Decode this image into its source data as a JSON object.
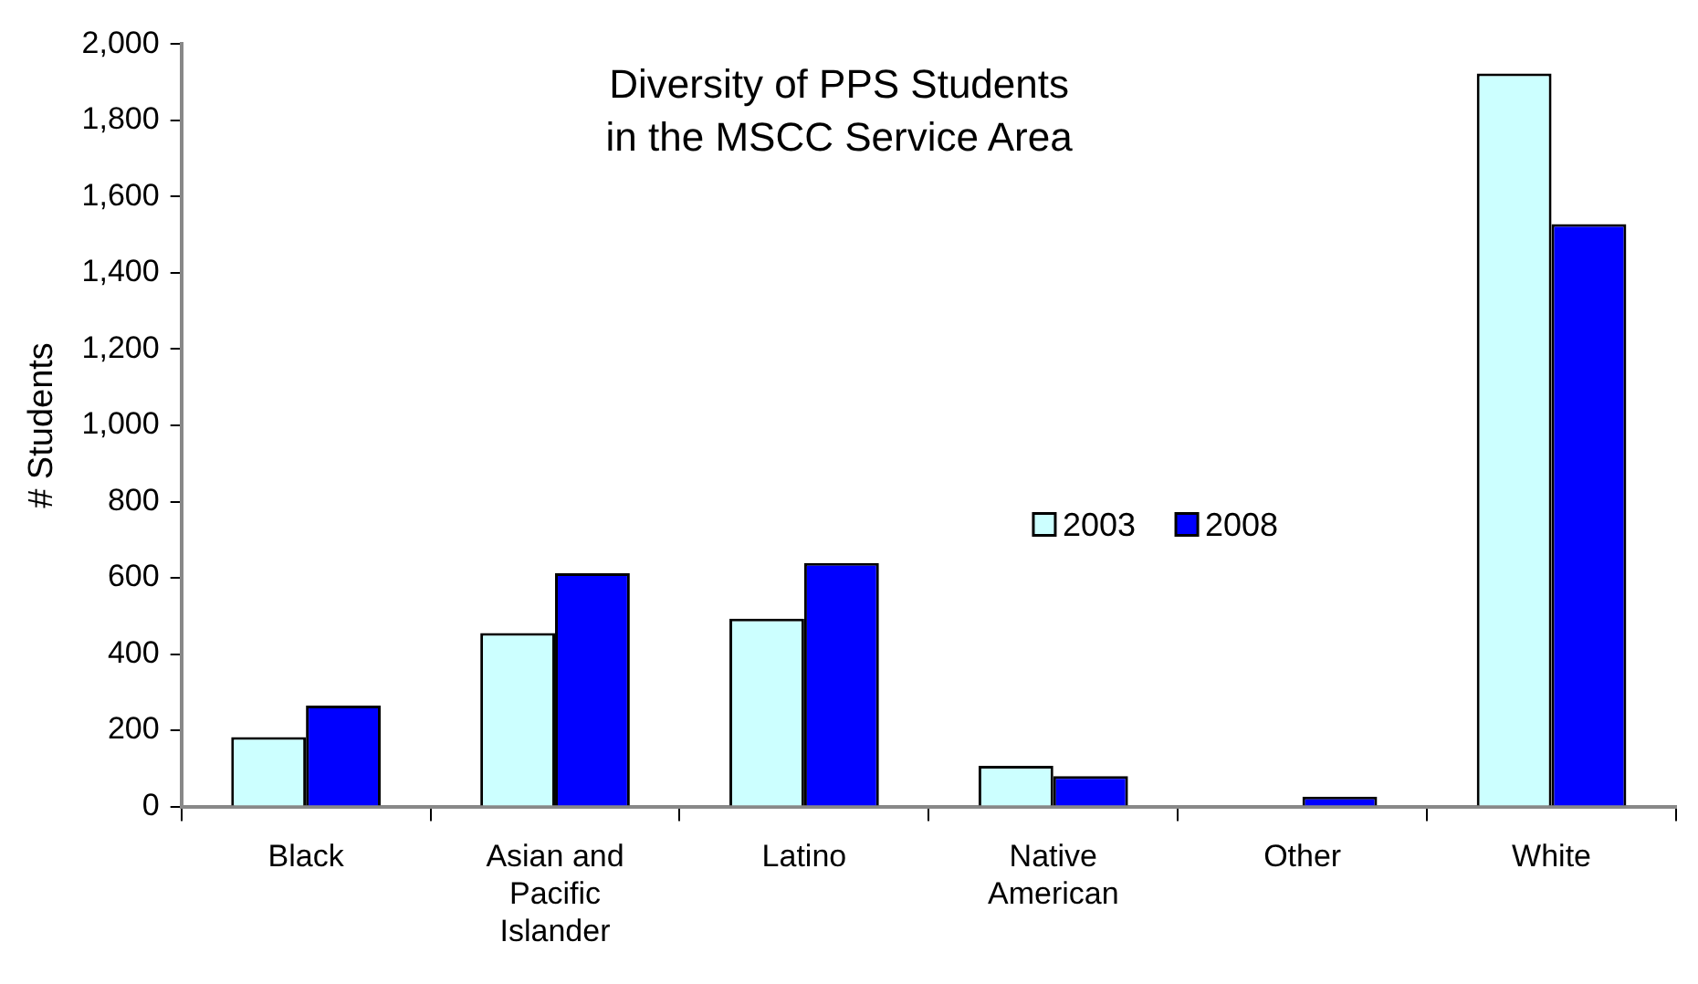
{
  "chart_data": {
    "type": "bar",
    "title": "Diversity of PPS Students\nin the MSCC Service Area",
    "ylabel": "# Students",
    "categories": [
      "Black",
      "Asian and Pacific Islander",
      "Latino",
      "Native American",
      "Other",
      "White"
    ],
    "series": [
      {
        "name": "2003",
        "color": "#ccffff",
        "values": [
          182,
          455,
          493,
          107,
          0,
          1923
        ]
      },
      {
        "name": "2008",
        "color": "#0000ff",
        "values": [
          265,
          612,
          639,
          80,
          26,
          1528
        ]
      }
    ],
    "ylim": [
      0,
      2000
    ],
    "yticks": [
      {
        "value": 0,
        "label": "0"
      },
      {
        "value": 200,
        "label": "200"
      },
      {
        "value": 400,
        "label": "400"
      },
      {
        "value": 600,
        "label": "600"
      },
      {
        "value": 800,
        "label": "800"
      },
      {
        "value": 1000,
        "label": "1,000"
      },
      {
        "value": 1200,
        "label": "1,200"
      },
      {
        "value": 1400,
        "label": "1,400"
      },
      {
        "value": 1600,
        "label": "1,600"
      },
      {
        "value": 1800,
        "label": "1,800"
      },
      {
        "value": 2000,
        "label": "2,000"
      }
    ],
    "grid": false,
    "legend": "right"
  }
}
